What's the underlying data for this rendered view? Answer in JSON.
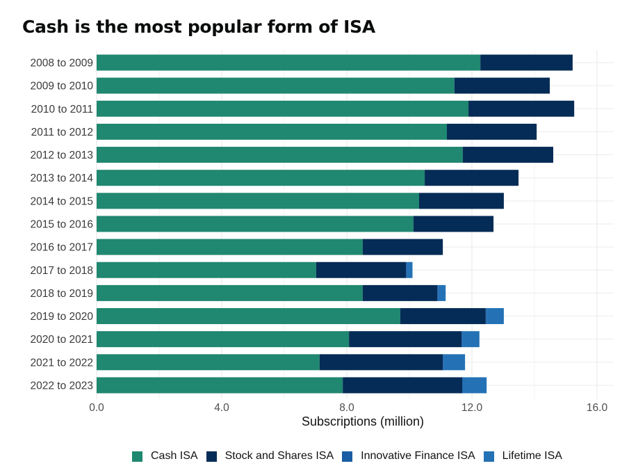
{
  "chart_data": {
    "type": "bar",
    "orientation": "horizontal",
    "stacked": true,
    "title": "Cash is the most popular form of ISA",
    "xlabel": "Subscriptions (million)",
    "ylabel": "",
    "xlim": [
      0,
      16.5
    ],
    "xticks": [
      0,
      4,
      8,
      12,
      16
    ],
    "xtick_labels": [
      "0.0",
      "4.0",
      "8.0",
      "12.0",
      "16.0"
    ],
    "grid": true,
    "legend_position": "bottom",
    "categories": [
      "2008 to 2009",
      "2009 to 2010",
      "2010 to 2011",
      "2011 to 2012",
      "2012 to 2013",
      "2013 to 2014",
      "2014 to 2015",
      "2015 to 2016",
      "2016 to 2017",
      "2017 to 2018",
      "2018 to 2019",
      "2019 to 2020",
      "2020 to 2021",
      "2021 to 2022",
      "2022 to 2023"
    ],
    "series": [
      {
        "name": "Cash ISA",
        "color": "#208770",
        "values": [
          12.27,
          11.44,
          11.89,
          11.2,
          11.71,
          10.49,
          10.31,
          10.13,
          8.51,
          7.02,
          8.51,
          9.71,
          8.07,
          7.13,
          7.87
        ]
      },
      {
        "name": "Stock and Shares ISA",
        "color": "#052c56",
        "values": [
          2.95,
          3.05,
          3.38,
          2.87,
          2.89,
          3.0,
          2.71,
          2.56,
          2.56,
          2.87,
          2.38,
          2.73,
          3.6,
          3.94,
          3.82
        ]
      },
      {
        "name": "Innovative Finance ISA",
        "color": "#1b5da5",
        "values": [
          0,
          0,
          0,
          0,
          0,
          0,
          0,
          0,
          0,
          0.04,
          0.04,
          0.03,
          0.02,
          0.02,
          0.02
        ]
      },
      {
        "name": "Lifetime ISA",
        "color": "#2472b5",
        "values": [
          0,
          0,
          0,
          0,
          0,
          0,
          0,
          0,
          0,
          0.17,
          0.23,
          0.55,
          0.55,
          0.69,
          0.76
        ]
      }
    ]
  },
  "colors": {
    "grid": "#ebebeb",
    "text": "#3a3a3a"
  }
}
